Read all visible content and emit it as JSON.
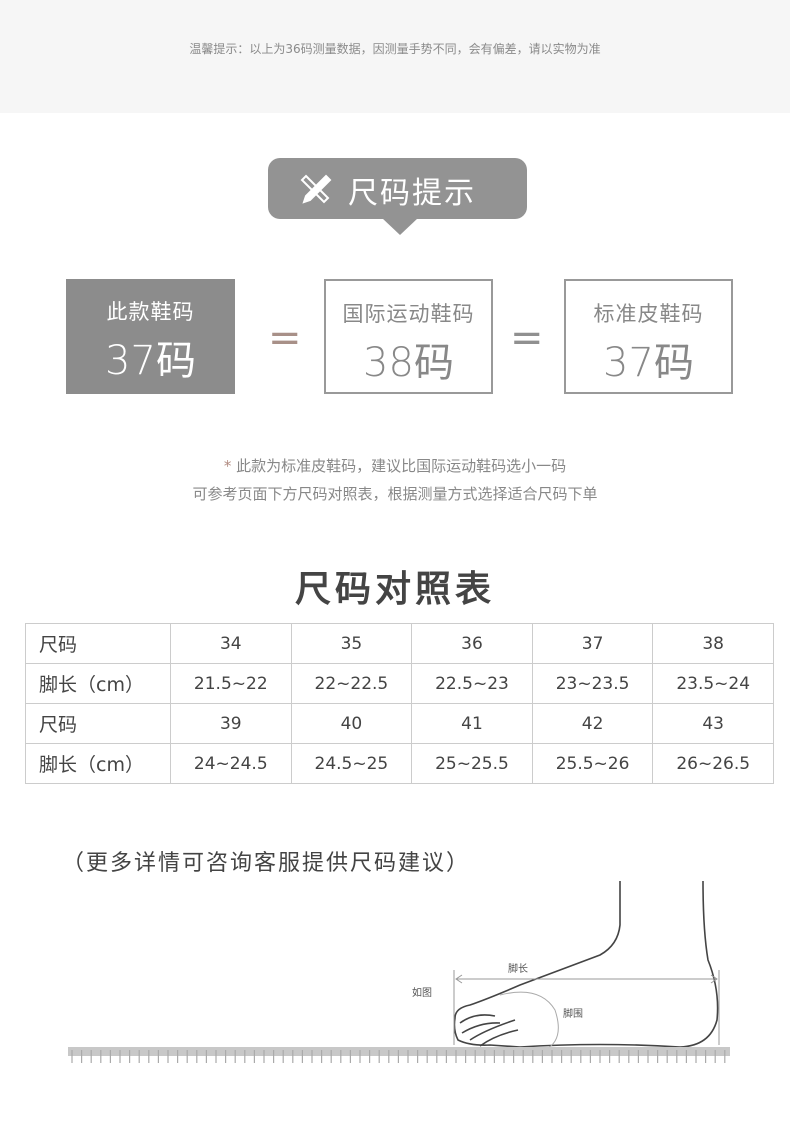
{
  "notice": {
    "text": "温馨提示：以上为36码测量数据，因测量手势不同，会有偏差，请以实物为准"
  },
  "badge": {
    "title": "尺码提示",
    "icon": "ruler-pencil-icon"
  },
  "comparison": [
    {
      "label": "此款鞋码",
      "value": "37码"
    },
    {
      "label": "国际运动鞋码",
      "value": "38码"
    },
    {
      "label": "标准皮鞋码",
      "value": "37码"
    }
  ],
  "equals": "=",
  "note": {
    "star": "*",
    "line1": "此款为标准皮鞋码，建议比国际运动鞋码选小一码",
    "line2": "可参考页面下方尺码对照表，根据测量方式选择适合尺码下单"
  },
  "chart_title": "尺码对照表",
  "table": {
    "rows": [
      {
        "head": "尺码",
        "cells": [
          "34",
          "35",
          "36",
          "37",
          "38"
        ]
      },
      {
        "head": "脚长（cm）",
        "cells": [
          "21.5~22",
          "22~22.5",
          "22.5~23",
          "23~23.5",
          "23.5~24"
        ]
      },
      {
        "head": "尺码",
        "cells": [
          "39",
          "40",
          "41",
          "42",
          "43"
        ]
      },
      {
        "head": "脚长（cm）",
        "cells": [
          "24~24.5",
          "24.5~25",
          "25~25.5",
          "25.5~26",
          "26~26.5"
        ]
      }
    ]
  },
  "more_info": "（更多详情可咨询客服提供尺码建议）",
  "diagram": {
    "foot_length": "脚长",
    "as_shown": "如图",
    "foot_girth": "脚围"
  },
  "colors": {
    "badge": "#939393",
    "box_fill": "#8c8c8c",
    "accent_equals": "#a89088"
  }
}
